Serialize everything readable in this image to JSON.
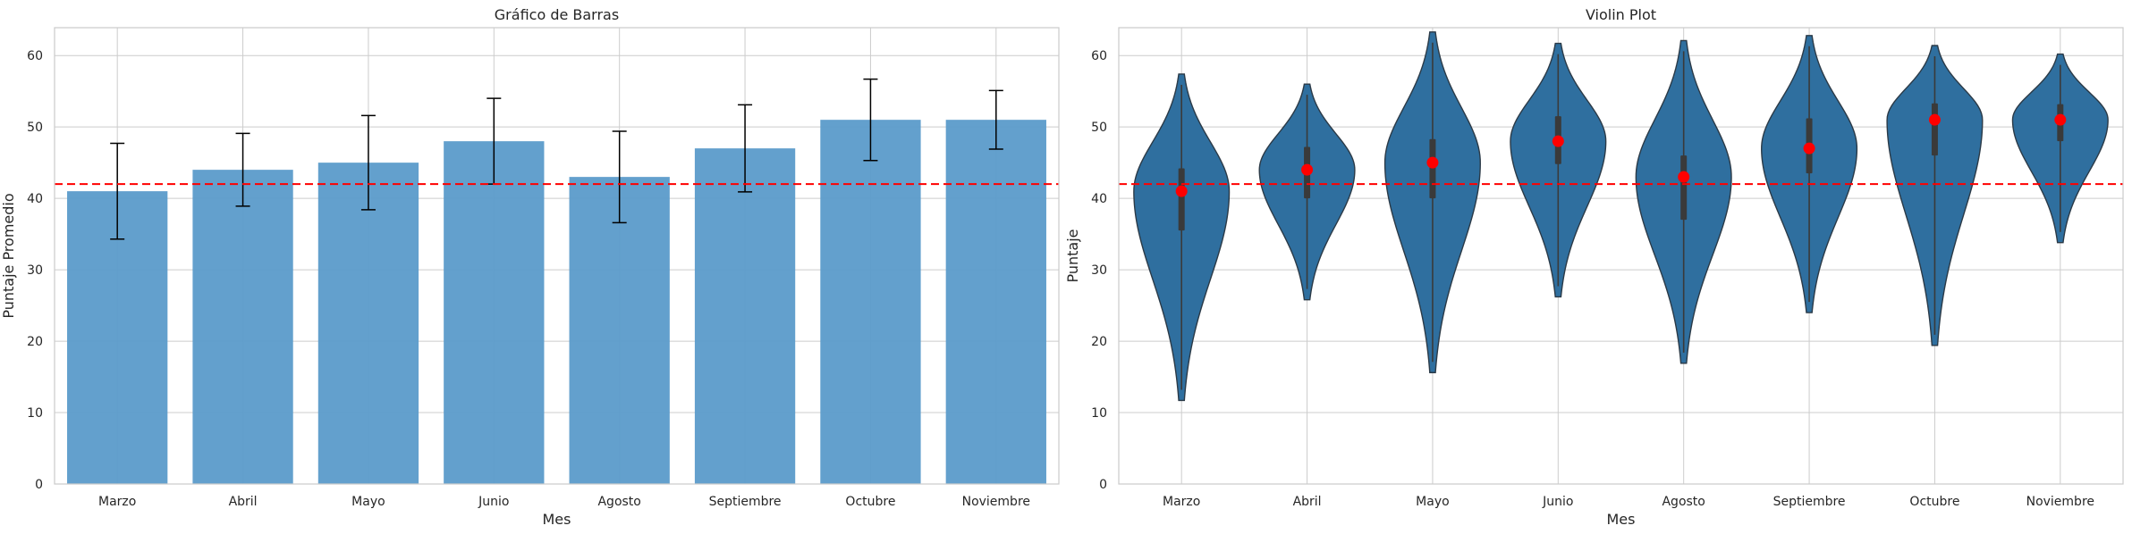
{
  "chart_data": [
    {
      "type": "bar",
      "title": "Gráfico de Barras",
      "xlabel": "Mes",
      "ylabel": "Puntaje Promedio",
      "categories": [
        "Marzo",
        "Abril",
        "Mayo",
        "Junio",
        "Agosto",
        "Septiembre",
        "Octubre",
        "Noviembre"
      ],
      "values": [
        41,
        44,
        45,
        48,
        43,
        47,
        51,
        51
      ],
      "error": [
        6.7,
        5.1,
        6.6,
        6.0,
        6.4,
        6.1,
        5.7,
        4.1
      ],
      "ylim": [
        0,
        63.9
      ],
      "yticks": [
        0,
        10,
        20,
        30,
        40,
        50,
        60
      ],
      "reference_line": 42,
      "grid": true,
      "colors": {
        "bar": "#5b9bca",
        "error_bar": "#000000",
        "reference_line": "#ff0000"
      }
    },
    {
      "type": "violin",
      "title": "Violin Plot",
      "xlabel": "Mes",
      "ylabel": "Puntaje",
      "categories": [
        "Marzo",
        "Abril",
        "Mayo",
        "Junio",
        "Agosto",
        "Septiembre",
        "Octubre",
        "Noviembre"
      ],
      "means": [
        41,
        44,
        45,
        48,
        43,
        47,
        51,
        51
      ],
      "ranges": [
        [
          11.7,
          57.4
        ],
        [
          25.8,
          56.0
        ],
        [
          15.6,
          63.3
        ],
        [
          26.2,
          61.7
        ],
        [
          16.9,
          62.1
        ],
        [
          24.0,
          62.8
        ],
        [
          19.4,
          61.4
        ],
        [
          33.8,
          60.2
        ]
      ],
      "quartiles": [
        [
          35.5,
          44.2
        ],
        [
          40.0,
          47.2
        ],
        [
          40.0,
          48.3
        ],
        [
          44.8,
          51.5
        ],
        [
          37.0,
          46.0
        ],
        [
          43.5,
          51.2
        ],
        [
          46.0,
          53.3
        ],
        [
          48.0,
          53.2
        ]
      ],
      "ylim": [
        0,
        63.9
      ],
      "yticks": [
        0,
        10,
        20,
        30,
        40,
        50,
        60
      ],
      "reference_line": 42,
      "grid": true,
      "colors": {
        "violin": "#2f6f9f",
        "mean_point": "#ff0000",
        "reference_line": "#ff0000",
        "box": "#3a3a3a"
      }
    }
  ]
}
